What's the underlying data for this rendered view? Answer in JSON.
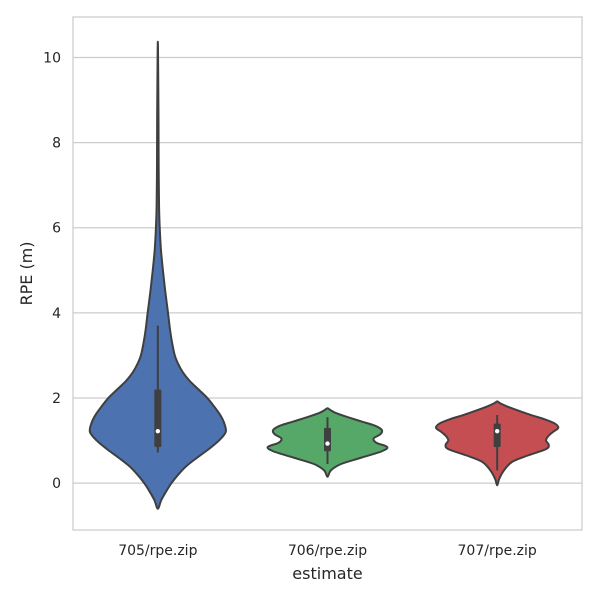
{
  "chart_data": {
    "type": "violin",
    "xlabel": "estimate",
    "ylabel": "RPE (m)",
    "ylim": [
      -1.1,
      10.95
    ],
    "y_ticks": [
      0,
      2,
      4,
      6,
      8,
      10
    ],
    "grid": true,
    "categories": [
      "705/rpe.zip",
      "706/rpe.zip",
      "707/rpe.zip"
    ],
    "series": [
      {
        "color": "#4c72b0",
        "stats": {
          "whisker_low": 0.72,
          "q1": 0.85,
          "median": 1.22,
          "q3": 2.2,
          "whisker_high": 3.7
        },
        "profile": [
          [
            -0.6,
            0.0
          ],
          [
            -0.4,
            0.05
          ],
          [
            -0.2,
            0.12
          ],
          [
            0.0,
            0.2
          ],
          [
            0.2,
            0.3
          ],
          [
            0.4,
            0.42
          ],
          [
            0.6,
            0.58
          ],
          [
            0.8,
            0.75
          ],
          [
            1.0,
            0.9
          ],
          [
            1.2,
            1.0
          ],
          [
            1.4,
            0.98
          ],
          [
            1.6,
            0.92
          ],
          [
            1.8,
            0.83
          ],
          [
            2.0,
            0.73
          ],
          [
            2.2,
            0.6
          ],
          [
            2.4,
            0.47
          ],
          [
            2.6,
            0.37
          ],
          [
            2.8,
            0.3
          ],
          [
            3.0,
            0.25
          ],
          [
            3.3,
            0.21
          ],
          [
            3.6,
            0.18
          ],
          [
            4.0,
            0.15
          ],
          [
            4.5,
            0.11
          ],
          [
            5.0,
            0.075
          ],
          [
            5.5,
            0.045
          ],
          [
            6.0,
            0.028
          ],
          [
            6.5,
            0.018
          ],
          [
            7.5,
            0.012
          ],
          [
            8.5,
            0.01
          ],
          [
            9.5,
            0.006
          ],
          [
            10.37,
            0.0
          ]
        ]
      },
      {
        "color": "#55a868",
        "stats": {
          "whisker_low": 0.45,
          "q1": 0.75,
          "median": 0.93,
          "q3": 1.3,
          "whisker_high": 1.55
        },
        "profile": [
          [
            0.15,
            0.0
          ],
          [
            0.3,
            0.05
          ],
          [
            0.45,
            0.2
          ],
          [
            0.6,
            0.5
          ],
          [
            0.75,
            0.8
          ],
          [
            0.85,
            0.88
          ],
          [
            0.95,
            0.72
          ],
          [
            1.05,
            0.68
          ],
          [
            1.15,
            0.78
          ],
          [
            1.25,
            0.8
          ],
          [
            1.35,
            0.7
          ],
          [
            1.45,
            0.5
          ],
          [
            1.55,
            0.3
          ],
          [
            1.65,
            0.12
          ],
          [
            1.72,
            0.04
          ],
          [
            1.76,
            0.0
          ]
        ]
      },
      {
        "color": "#c44e52",
        "stats": {
          "whisker_low": 0.3,
          "q1": 0.85,
          "median": 1.22,
          "q3": 1.4,
          "whisker_high": 1.6
        },
        "profile": [
          [
            -0.05,
            0.0
          ],
          [
            0.1,
            0.03
          ],
          [
            0.3,
            0.1
          ],
          [
            0.5,
            0.22
          ],
          [
            0.65,
            0.45
          ],
          [
            0.8,
            0.72
          ],
          [
            0.9,
            0.76
          ],
          [
            1.0,
            0.72
          ],
          [
            1.1,
            0.75
          ],
          [
            1.2,
            0.82
          ],
          [
            1.3,
            0.9
          ],
          [
            1.4,
            0.85
          ],
          [
            1.5,
            0.7
          ],
          [
            1.6,
            0.5
          ],
          [
            1.7,
            0.32
          ],
          [
            1.8,
            0.15
          ],
          [
            1.88,
            0.04
          ],
          [
            1.92,
            0.0
          ]
        ]
      }
    ]
  }
}
